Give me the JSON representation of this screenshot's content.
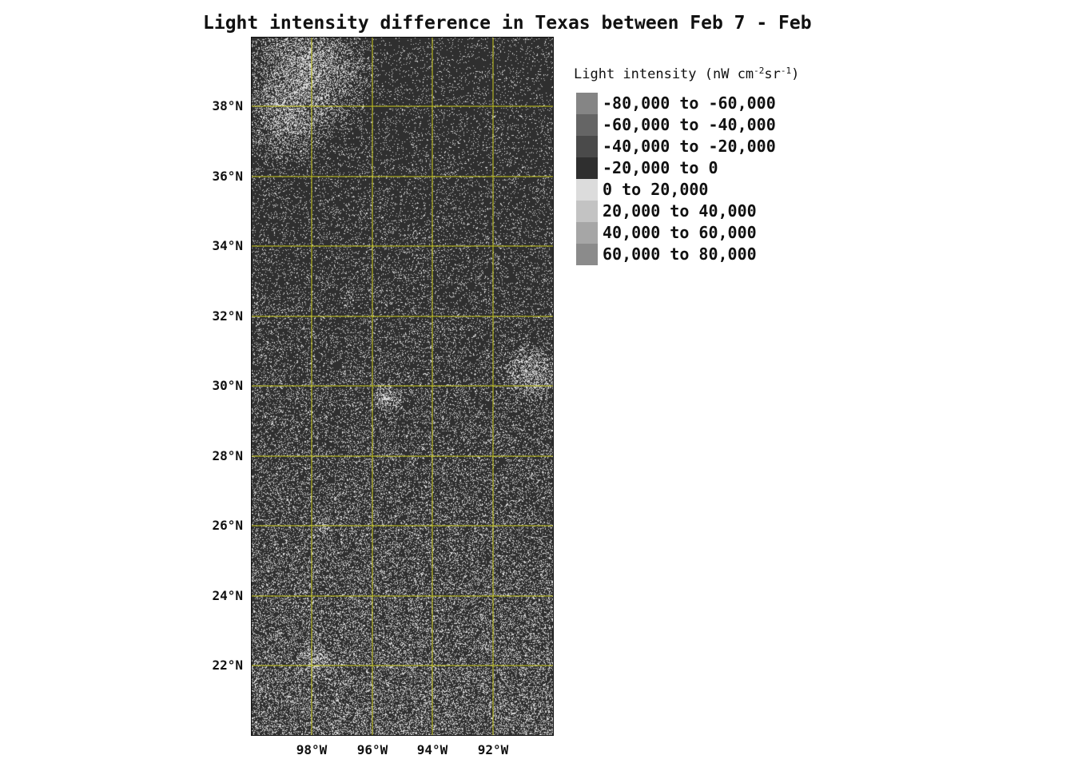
{
  "title": "Light intensity difference in Texas between Feb 7 - Feb",
  "map": {
    "background_color": "#2f2f2f",
    "speckle_color": "#dedede",
    "gridline_color": "#c8c81e",
    "lat_ticks": [
      "38°N",
      "36°N",
      "34°N",
      "32°N",
      "30°N",
      "28°N",
      "26°N",
      "24°N",
      "22°N"
    ],
    "lon_ticks": [
      "98°W",
      "96°W",
      "94°W",
      "92°W"
    ]
  },
  "legend": {
    "title": "Light intensity (nW cm",
    "title_sup_1": "-2",
    "title_mid": "sr",
    "title_sup_2": "-1",
    "title_end": ")",
    "items": [
      {
        "label": "-80,000 to -60,000",
        "color": "#858585"
      },
      {
        "label": "-60,000 to -40,000",
        "color": "#656565"
      },
      {
        "label": "-40,000 to -20,000",
        "color": "#4a4a4a"
      },
      {
        "label": "-20,000 to 0",
        "color": "#2f2f2f"
      },
      {
        "label": "0 to 20,000",
        "color": "#dcdcdc"
      },
      {
        "label": "20,000 to 40,000",
        "color": "#c3c3c3"
      },
      {
        "label": "40,000 to 60,000",
        "color": "#a6a6a6"
      },
      {
        "label": "60,000 to 80,000",
        "color": "#8b8b8b"
      }
    ]
  }
}
